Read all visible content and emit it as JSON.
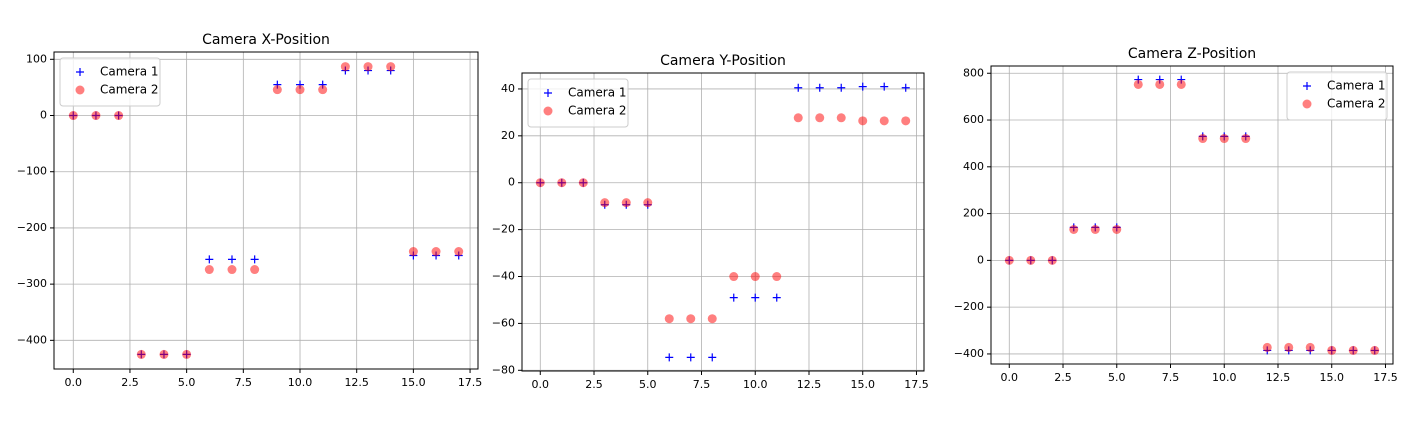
{
  "chart_data": [
    {
      "type": "scatter",
      "title": "Camera X-Position",
      "legend": "upper left",
      "grid": true,
      "x": [
        0,
        1,
        2,
        3,
        4,
        5,
        6,
        7,
        8,
        9,
        10,
        11,
        12,
        13,
        14,
        15,
        16,
        17
      ],
      "series": [
        {
          "name": "Camera 1",
          "color": "#0000ff",
          "marker": "+",
          "values": [
            0,
            0,
            0,
            -425,
            -425,
            -425,
            -256,
            -256,
            -256,
            55,
            55,
            55,
            80,
            80,
            80,
            -249,
            -249,
            -249
          ]
        },
        {
          "name": "Camera 2",
          "color": "#ff0000",
          "marker": "o",
          "values": [
            0,
            0,
            0,
            -425,
            -425,
            -425,
            -274,
            -274,
            -274,
            46,
            46,
            46,
            87,
            87,
            87,
            -242,
            -242,
            -242
          ]
        }
      ],
      "xlim": [
        -0.85,
        17.85
      ],
      "xticks": [
        {
          "value": 0,
          "label": "0.0"
        },
        {
          "value": 2.5,
          "label": "2.5"
        },
        {
          "value": 5,
          "label": "5.0"
        },
        {
          "value": 7.5,
          "label": "7.5"
        },
        {
          "value": 10,
          "label": "10.0"
        },
        {
          "value": 12.5,
          "label": "12.5"
        },
        {
          "value": 15,
          "label": "15.0"
        },
        {
          "value": 17.5,
          "label": "17.5"
        }
      ],
      "ylim": [
        -451,
        113
      ],
      "yticks": [
        {
          "value": -400,
          "label": "−400"
        },
        {
          "value": -300,
          "label": "−300"
        },
        {
          "value": -200,
          "label": "−200"
        },
        {
          "value": -100,
          "label": "−100"
        },
        0,
        100
      ]
    },
    {
      "type": "scatter",
      "title": "Camera Y-Position",
      "legend": "upper left",
      "grid": true,
      "x": [
        0,
        1,
        2,
        3,
        4,
        5,
        6,
        7,
        8,
        9,
        10,
        11,
        12,
        13,
        14,
        15,
        16,
        17
      ],
      "series": [
        {
          "name": "Camera 1",
          "color": "#0000ff",
          "marker": "+",
          "values": [
            0,
            0,
            0,
            -9.4,
            -9.4,
            -9.4,
            -74.5,
            -74.5,
            -74.5,
            -49,
            -49,
            -49,
            40.5,
            40.5,
            40.5,
            41,
            41,
            40.5
          ]
        },
        {
          "name": "Camera 2",
          "color": "#ff0000",
          "marker": "o",
          "values": [
            0,
            0,
            0,
            -8.5,
            -8.5,
            -8.5,
            -58,
            -58,
            -58,
            -40,
            -40,
            -40,
            27.7,
            27.7,
            27.7,
            26.4,
            26.4,
            26.4
          ]
        }
      ],
      "xlim": [
        -0.85,
        17.85
      ],
      "xticks": [
        {
          "value": 0,
          "label": "0.0"
        },
        {
          "value": 2.5,
          "label": "2.5"
        },
        {
          "value": 5,
          "label": "5.0"
        },
        {
          "value": 7.5,
          "label": "7.5"
        },
        {
          "value": 10,
          "label": "10.0"
        },
        {
          "value": 12.5,
          "label": "12.5"
        },
        {
          "value": 15,
          "label": "15.0"
        },
        {
          "value": 17.5,
          "label": "17.5"
        }
      ],
      "ylim": [
        -80.3,
        46.8
      ],
      "yticks": [
        {
          "value": -80,
          "label": "−80"
        },
        {
          "value": -60,
          "label": "−60"
        },
        {
          "value": -40,
          "label": "−40"
        },
        {
          "value": -20,
          "label": "−20"
        },
        0,
        20,
        40
      ]
    },
    {
      "type": "scatter",
      "title": "Camera Z-Position",
      "legend": "upper right",
      "grid": true,
      "x": [
        0,
        1,
        2,
        3,
        4,
        5,
        6,
        7,
        8,
        9,
        10,
        11,
        12,
        13,
        14,
        15,
        16,
        17
      ],
      "series": [
        {
          "name": "Camera 1",
          "color": "#0000ff",
          "marker": "+",
          "values": [
            0,
            0,
            0,
            141,
            141,
            141,
            773,
            773,
            773,
            530,
            530,
            530,
            -385,
            -385,
            -385,
            -385,
            -385,
            -385
          ]
        },
        {
          "name": "Camera 2",
          "color": "#ff0000",
          "marker": "o",
          "values": [
            0,
            0,
            0,
            132,
            132,
            132,
            752,
            752,
            752,
            521,
            521,
            521,
            -372,
            -372,
            -372,
            -385,
            -385,
            -385
          ]
        }
      ],
      "xlim": [
        -0.85,
        17.85
      ],
      "xticks": [
        {
          "value": 0,
          "label": "0.0"
        },
        {
          "value": 2.5,
          "label": "2.5"
        },
        {
          "value": 5,
          "label": "5.0"
        },
        {
          "value": 7.5,
          "label": "7.5"
        },
        {
          "value": 10,
          "label": "10.0"
        },
        {
          "value": 12.5,
          "label": "12.5"
        },
        {
          "value": 15,
          "label": "15.0"
        },
        {
          "value": 17.5,
          "label": "17.5"
        }
      ],
      "ylim": [
        -443,
        831
      ],
      "yticks": [
        {
          "value": -400,
          "label": "−400"
        },
        {
          "value": -200,
          "label": "−200"
        },
        0,
        200,
        400,
        600,
        800
      ]
    }
  ]
}
